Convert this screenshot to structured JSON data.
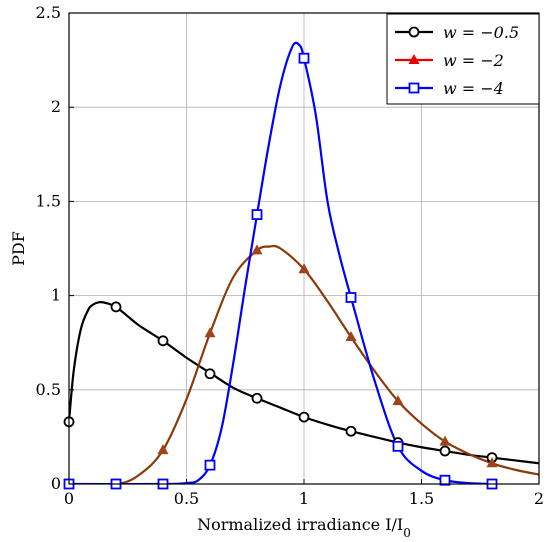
{
  "chart_data": {
    "type": "line",
    "title": "",
    "xlabel": "Normalized irradiance I/I₀",
    "ylabel": "PDF",
    "xlim": [
      0,
      2
    ],
    "ylim": [
      0,
      2.5
    ],
    "x_ticks": [
      "0",
      "0.5",
      "1",
      "1.5",
      "2"
    ],
    "y_ticks": [
      "0",
      "0.5",
      "1",
      "1.5",
      "2",
      "2.5"
    ],
    "grid": true,
    "legend_position": "top-right",
    "series": [
      {
        "name": "w = −0.5",
        "color": "#000000",
        "marker": "circle",
        "x": [
          0,
          0.02,
          0.05,
          0.08,
          0.1,
          0.13,
          0.16,
          0.2,
          0.25,
          0.3,
          0.4,
          0.5,
          0.6,
          0.7,
          0.8,
          0.9,
          1.0,
          1.1,
          1.2,
          1.3,
          1.4,
          1.5,
          1.6,
          1.7,
          1.8,
          1.9,
          2.0
        ],
        "y": [
          0.33,
          0.6,
          0.82,
          0.92,
          0.95,
          0.965,
          0.96,
          0.94,
          0.89,
          0.84,
          0.76,
          0.67,
          0.59,
          0.51,
          0.455,
          0.405,
          0.355,
          0.315,
          0.28,
          0.25,
          0.22,
          0.195,
          0.175,
          0.155,
          0.14,
          0.125,
          0.11
        ],
        "markers_x": [
          0,
          0.2,
          0.4,
          0.6,
          0.8,
          1.0,
          1.2,
          1.4,
          1.6,
          1.8
        ],
        "markers_y": [
          0.33,
          0.94,
          0.76,
          0.585,
          0.455,
          0.355,
          0.28,
          0.22,
          0.175,
          0.14
        ]
      },
      {
        "name": "w = −2",
        "color": "#e60000",
        "line_color": "#8b3a0a",
        "marker": "triangle",
        "x": [
          0,
          0.2,
          0.3,
          0.4,
          0.5,
          0.6,
          0.7,
          0.8,
          0.85,
          0.9,
          1.0,
          1.1,
          1.2,
          1.3,
          1.4,
          1.5,
          1.6,
          1.7,
          1.8,
          1.9,
          2.0
        ],
        "y": [
          0,
          0,
          0.05,
          0.18,
          0.45,
          0.8,
          1.1,
          1.24,
          1.26,
          1.25,
          1.14,
          0.97,
          0.78,
          0.6,
          0.44,
          0.32,
          0.225,
          0.16,
          0.11,
          0.075,
          0.05
        ],
        "markers_x": [
          0,
          0.2,
          0.4,
          0.6,
          0.8,
          1.0,
          1.2,
          1.4,
          1.6,
          1.8
        ],
        "markers_y": [
          0,
          0,
          0.18,
          0.8,
          1.24,
          1.14,
          0.78,
          0.44,
          0.225,
          0.11
        ]
      },
      {
        "name": "w = −4",
        "color": "#0000ff",
        "marker": "square",
        "x": [
          0,
          0.4,
          0.5,
          0.55,
          0.6,
          0.65,
          0.7,
          0.75,
          0.8,
          0.85,
          0.9,
          0.95,
          0.98,
          1.0,
          1.05,
          1.1,
          1.15,
          1.2,
          1.3,
          1.4,
          1.5,
          1.6,
          1.7,
          1.8
        ],
        "y": [
          0,
          0,
          0.005,
          0.02,
          0.1,
          0.3,
          0.65,
          1.05,
          1.43,
          1.8,
          2.12,
          2.32,
          2.33,
          2.26,
          1.96,
          1.5,
          1.22,
          0.99,
          0.55,
          0.2,
          0.07,
          0.02,
          0.005,
          0
        ],
        "markers_x": [
          0,
          0.2,
          0.4,
          0.6,
          0.8,
          1.0,
          1.2,
          1.4,
          1.6,
          1.8
        ],
        "markers_y": [
          0,
          0,
          0,
          0.1,
          1.43,
          2.26,
          0.99,
          0.2,
          0.02,
          0
        ]
      }
    ]
  }
}
